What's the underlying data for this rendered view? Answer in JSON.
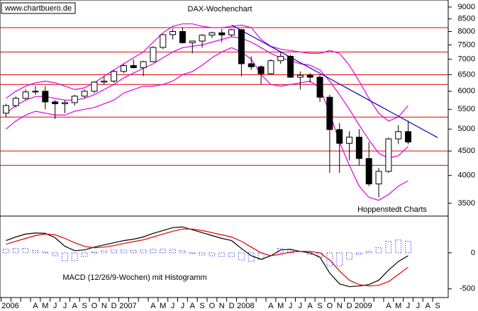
{
  "chart_data": [
    {
      "type": "candlestick",
      "title": "DAX-Wochenchart",
      "watermark": "www.chartbuero.de",
      "source": "Hoppenstedt Charts",
      "log_scale": true,
      "categories": [
        "2006",
        null,
        null,
        "A",
        "M",
        "J",
        "J",
        "A",
        "S",
        "O",
        "N",
        "D",
        "2007",
        null,
        null,
        "A",
        "M",
        "J",
        "J",
        "A",
        "S",
        "O",
        "N",
        "D",
        "2008",
        null,
        null,
        "A",
        "M",
        "J",
        "J",
        "A",
        "S",
        "O",
        "N",
        "D",
        "2009",
        null,
        null,
        "A",
        "M",
        "J",
        "J",
        "A",
        "S"
      ],
      "open": [
        5400,
        5600,
        5800,
        5980,
        6000,
        5700,
        5650,
        5680,
        5860,
        6000,
        6270,
        6300,
        6600,
        6790,
        6720,
        6920,
        7410,
        7880,
        8000,
        7580,
        7640,
        7860,
        7950,
        7870,
        8070,
        6850,
        6750,
        6530,
        6950,
        7100,
        6420,
        6480,
        6420,
        5830,
        4990,
        4670,
        4810,
        4340,
        3840,
        4080,
        4770,
        4940,
        null,
        null,
        null
      ],
      "high": [
        5650,
        5850,
        6050,
        6150,
        6150,
        5750,
        5750,
        5900,
        6050,
        6300,
        6450,
        6650,
        6850,
        7000,
        6950,
        7450,
        7900,
        8100,
        8150,
        7650,
        7900,
        8000,
        8100,
        8100,
        8100,
        7100,
        6800,
        7000,
        7250,
        7150,
        6600,
        6550,
        6500,
        5900,
        5150,
        4950,
        5000,
        4700,
        4150,
        4800,
        5100,
        5200,
        null,
        null,
        null
      ],
      "low": [
        5300,
        5550,
        5750,
        5900,
        5500,
        5250,
        5400,
        5600,
        5800,
        5950,
        6200,
        6250,
        6550,
        6700,
        6450,
        6900,
        7350,
        7700,
        7550,
        7200,
        7400,
        7750,
        7600,
        7800,
        6450,
        6650,
        6200,
        6500,
        6850,
        6400,
        6050,
        6250,
        5700,
        4050,
        4050,
        4300,
        4200,
        3800,
        3600,
        4050,
        4650,
        4650,
        null,
        null,
        null
      ],
      "close": [
        5600,
        5800,
        5980,
        6000,
        5700,
        5650,
        5680,
        5860,
        6000,
        6270,
        6300,
        6600,
        6790,
        6720,
        6920,
        7410,
        7880,
        8000,
        7580,
        7640,
        7860,
        7950,
        7870,
        8070,
        6850,
        6750,
        6530,
        6950,
        7100,
        6420,
        6480,
        6420,
        5830,
        4990,
        4670,
        4810,
        4340,
        3840,
        4080,
        4770,
        4940,
        4700,
        null,
        null,
        null
      ],
      "up_color": "#ffffff",
      "down_color": "#000000",
      "series": [
        {
          "color": "#e000e0",
          "values": [
            5800,
            6000,
            6150,
            6250,
            6300,
            6250,
            6150,
            6050,
            6100,
            6250,
            6450,
            6650,
            6850,
            7050,
            7250,
            7600,
            7950,
            8200,
            8300,
            8300,
            8200,
            8150,
            8150,
            8200,
            8250,
            8150,
            7700,
            7450,
            7350,
            7300,
            7250,
            7200,
            7200,
            7300,
            7200,
            6800,
            6300,
            5800,
            5400,
            5200,
            5300,
            5600,
            null,
            null,
            null
          ]
        },
        {
          "color": "#e000e0",
          "values": [
            5400,
            5600,
            5750,
            5850,
            5850,
            5800,
            5750,
            5750,
            5800,
            5900,
            6050,
            6200,
            6400,
            6550,
            6700,
            6850,
            7050,
            7250,
            7400,
            7450,
            7500,
            7600,
            7700,
            7800,
            7750,
            7600,
            7400,
            7200,
            7050,
            6950,
            6850,
            6800,
            6650,
            6300,
            5900,
            5500,
            5100,
            4750,
            4450,
            4350,
            4400,
            4600,
            null,
            null,
            null
          ]
        },
        {
          "color": "#e000e0",
          "values": [
            5000,
            5200,
            5350,
            5450,
            5400,
            5350,
            5350,
            5450,
            5500,
            5550,
            5650,
            5750,
            5950,
            6050,
            6150,
            6150,
            6200,
            6300,
            6500,
            6600,
            6800,
            7050,
            7250,
            7400,
            7250,
            7000,
            6500,
            6200,
            6150,
            6200,
            6250,
            6300,
            6100,
            5400,
            4700,
            4200,
            3800,
            3600,
            3550,
            3650,
            3800,
            3900,
            null,
            null,
            null
          ]
        }
      ],
      "trendline": {
        "color": "#0000cc",
        "values": [
          null,
          null,
          null,
          null,
          null,
          null,
          null,
          null,
          null,
          null,
          null,
          null,
          null,
          null,
          null,
          null,
          null,
          null,
          null,
          null,
          null,
          null,
          null,
          8250,
          8040,
          7835,
          7636,
          7441,
          7252,
          7067,
          6887,
          6712,
          6541,
          6375,
          6212,
          6054,
          5900,
          5750,
          5604,
          5461,
          5322,
          5187,
          5055,
          4926,
          4800
        ]
      },
      "hlines": {
        "color": "#e00000",
        "values": [
          8150,
          7250,
          6500,
          6200,
          5300,
          4500,
          4200
        ]
      },
      "ylim": [
        3290,
        9310
      ],
      "yticks": [
        3500,
        4000,
        4500,
        5000,
        5500,
        6000,
        6500,
        7000,
        7500,
        8000,
        8500,
        9000
      ]
    },
    {
      "type": "line",
      "title": "MACD (12/26/9-Wochen) mit Histogramm",
      "series": [
        {
          "color": "#000000",
          "values": [
            170,
            220,
            260,
            275,
            270,
            210,
            90,
            30,
            40,
            80,
            110,
            140,
            170,
            190,
            220,
            270,
            310,
            350,
            360,
            320,
            280,
            240,
            200,
            170,
            60,
            -40,
            -90,
            -40,
            40,
            50,
            20,
            0,
            -60,
            -280,
            -430,
            -470,
            -460,
            -440,
            -380,
            -240,
            -120,
            -40,
            null,
            null,
            null
          ]
        },
        {
          "color": "#e00000",
          "values": [
            120,
            160,
            200,
            240,
            260,
            250,
            200,
            140,
            90,
            70,
            80,
            100,
            130,
            155,
            180,
            220,
            260,
            300,
            330,
            330,
            310,
            280,
            250,
            220,
            160,
            80,
            0,
            -40,
            -20,
            10,
            20,
            20,
            0,
            -100,
            -250,
            -380,
            -440,
            -460,
            -450,
            -400,
            -300,
            -200,
            null,
            null,
            null
          ]
        }
      ],
      "histogram": {
        "color": "#0000cc",
        "values": [
          50,
          60,
          60,
          35,
          10,
          -40,
          -110,
          -110,
          -50,
          10,
          30,
          40,
          40,
          35,
          40,
          50,
          50,
          50,
          30,
          -10,
          -30,
          -40,
          -50,
          -50,
          -100,
          -120,
          -90,
          0,
          60,
          40,
          0,
          -20,
          -60,
          -180,
          -180,
          -90,
          -20,
          20,
          70,
          160,
          180,
          160,
          null,
          null,
          null
        ]
      },
      "ylim": [
        -620,
        510
      ],
      "yticks": [
        0,
        -500
      ]
    }
  ]
}
